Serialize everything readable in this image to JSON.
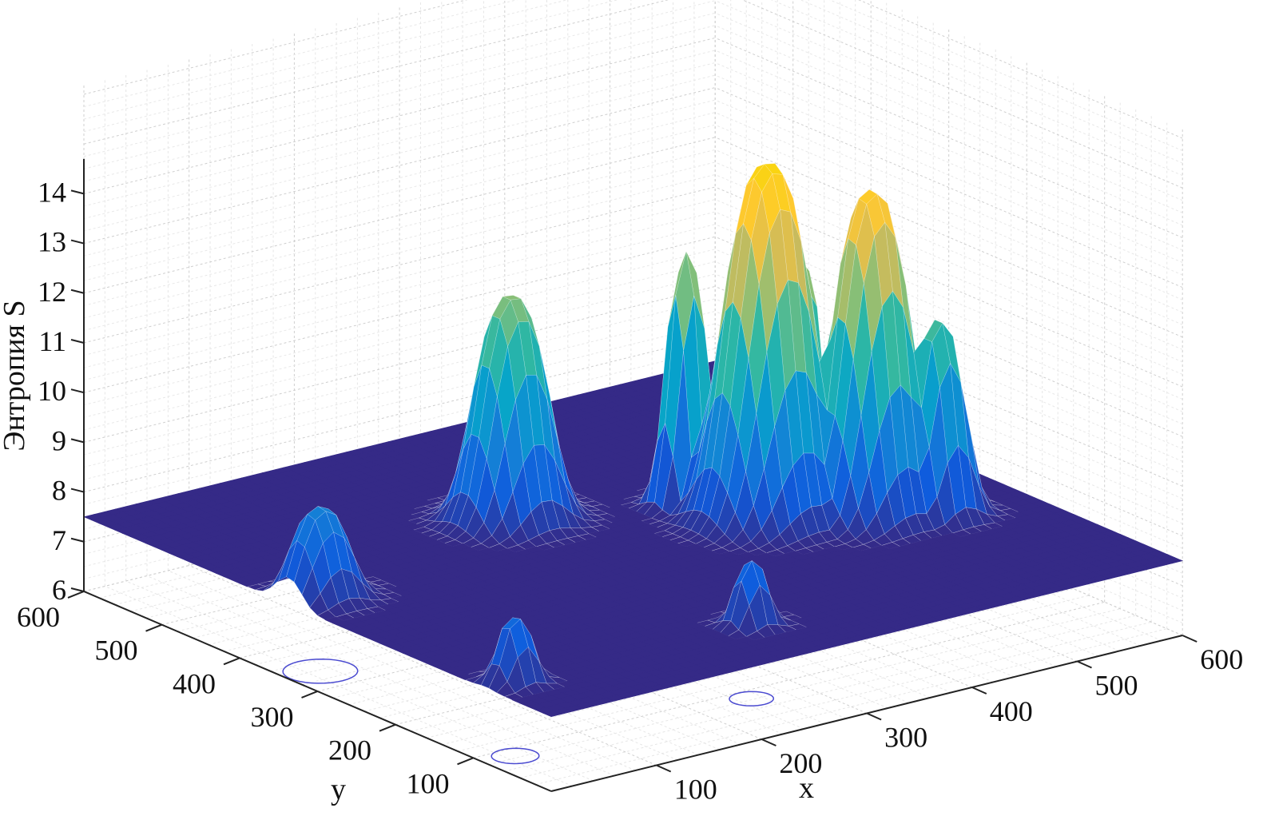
{
  "chart_data": {
    "type": "surface3d",
    "title": "",
    "xlabel": "x",
    "ylabel": "y",
    "zlabel": "Энтропия S",
    "xlim": [
      0,
      600
    ],
    "ylim": [
      0,
      600
    ],
    "zlim": [
      6,
      14.7
    ],
    "xticks": [
      "100",
      "200",
      "300",
      "400",
      "500",
      "600"
    ],
    "yticks": [
      "100",
      "200",
      "300",
      "400",
      "500",
      "600"
    ],
    "zticks": [
      "6",
      "7",
      "8",
      "9",
      "10",
      "11",
      "12",
      "13",
      "14"
    ],
    "base_level": 7.5,
    "grid": true,
    "colormap": [
      "#352a87",
      "#0f5cdd",
      "#1481d6",
      "#06a4ca",
      "#2eb7a4",
      "#87bf77",
      "#d1bb59",
      "#fec832",
      "#f9d50e"
    ],
    "peaks": [
      {
        "x": 413,
        "y": 280,
        "peak": 14.6,
        "spread": 34
      },
      {
        "x": 479,
        "y": 236,
        "peak": 14.0,
        "spread": 30
      },
      {
        "x": 254,
        "y": 395,
        "peak": 12.0,
        "spread": 28
      },
      {
        "x": 381,
        "y": 341,
        "peak": 12.6,
        "spread": 16
      },
      {
        "x": 453,
        "y": 288,
        "peak": 12.5,
        "spread": 14
      },
      {
        "x": 520,
        "y": 205,
        "peak": 11.4,
        "spread": 20
      },
      {
        "x": 30,
        "y": 337,
        "peak": 9.3,
        "spread": 22
      },
      {
        "x": 28,
        "y": 84,
        "peak": 8.8,
        "spread": 14
      },
      {
        "x": 251,
        "y": 82,
        "peak": 8.8,
        "spread": 13
      }
    ]
  }
}
